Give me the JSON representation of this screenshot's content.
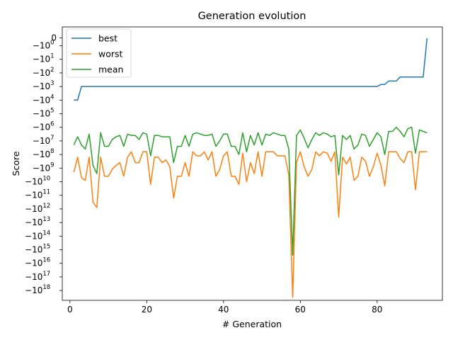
{
  "chart_data": {
    "type": "line",
    "title": "Generation evolution",
    "xlabel": "# Generation",
    "ylabel": "Score",
    "yscale": "symlog (negative, powers of ten)",
    "xlim": [
      -2,
      97
    ],
    "x_ticks": [
      "0",
      "20",
      "40",
      "60",
      "80"
    ],
    "y_ticks": [
      {
        "label": "0",
        "exp": null
      },
      {
        "label": "−10",
        "exp": "0"
      },
      {
        "label": "−10",
        "exp": "1"
      },
      {
        "label": "−10",
        "exp": "2"
      },
      {
        "label": "−10",
        "exp": "3"
      },
      {
        "label": "−10",
        "exp": "4"
      },
      {
        "label": "−10",
        "exp": "5"
      },
      {
        "label": "−10",
        "exp": "6"
      },
      {
        "label": "−10",
        "exp": "7"
      },
      {
        "label": "−10",
        "exp": "8"
      },
      {
        "label": "−10",
        "exp": "9"
      },
      {
        "label": "−10",
        "exp": "10"
      },
      {
        "label": "−10",
        "exp": "11"
      },
      {
        "label": "−10",
        "exp": "12"
      },
      {
        "label": "−10",
        "exp": "13"
      },
      {
        "label": "−10",
        "exp": "14"
      },
      {
        "label": "−10",
        "exp": "15"
      },
      {
        "label": "−10",
        "exp": "16"
      },
      {
        "label": "−10",
        "exp": "17"
      },
      {
        "label": "−10",
        "exp": "18"
      }
    ],
    "legend_position": "top-left",
    "series": [
      {
        "name": "best",
        "color": "#1f77b4",
        "x": [
          1,
          2,
          3,
          4,
          5,
          6,
          7,
          8,
          9,
          10,
          11,
          12,
          13,
          14,
          15,
          16,
          17,
          18,
          19,
          20,
          21,
          22,
          23,
          24,
          25,
          26,
          27,
          28,
          29,
          30,
          31,
          32,
          33,
          34,
          35,
          36,
          37,
          38,
          39,
          40,
          41,
          42,
          43,
          44,
          45,
          46,
          47,
          48,
          49,
          50,
          51,
          52,
          53,
          54,
          55,
          56,
          57,
          58,
          59,
          60,
          61,
          62,
          63,
          64,
          65,
          66,
          67,
          68,
          69,
          70,
          71,
          72,
          73,
          74,
          75,
          76,
          77,
          78,
          79,
          80,
          81,
          82,
          83,
          84,
          85,
          86,
          87,
          88,
          89,
          90,
          91,
          92,
          93
        ],
        "log_magnitude": [
          4,
          4,
          3,
          3,
          3,
          3,
          3,
          3,
          3,
          3,
          3,
          3,
          3,
          3,
          3,
          3,
          3,
          3,
          3,
          3,
          3,
          3,
          3,
          3,
          3,
          3,
          3,
          3,
          3,
          3,
          3,
          3,
          3,
          3,
          3,
          3,
          3,
          3,
          3,
          3,
          3,
          3,
          3,
          3,
          3,
          3,
          3,
          3,
          3,
          3,
          3,
          3,
          3,
          3,
          3,
          3,
          3,
          3,
          3,
          3,
          3,
          3,
          3,
          3,
          3,
          3,
          3,
          3,
          3,
          3,
          3,
          3,
          3,
          3,
          3,
          3,
          3,
          3,
          3,
          3,
          2.85,
          2.85,
          2.6,
          2.6,
          2.6,
          2.3,
          2.3,
          2.3,
          2.3,
          2.3,
          2.3,
          2.3,
          0
        ]
      },
      {
        "name": "worst",
        "color": "#ff7f0e",
        "x": [
          1,
          2,
          3,
          4,
          5,
          6,
          7,
          8,
          9,
          10,
          11,
          12,
          13,
          14,
          15,
          16,
          17,
          18,
          19,
          20,
          21,
          22,
          23,
          24,
          25,
          26,
          27,
          28,
          29,
          30,
          31,
          32,
          33,
          34,
          35,
          36,
          37,
          38,
          39,
          40,
          41,
          42,
          43,
          44,
          45,
          46,
          47,
          48,
          49,
          50,
          51,
          52,
          53,
          54,
          55,
          56,
          57,
          58,
          59,
          60,
          61,
          62,
          63,
          64,
          65,
          66,
          67,
          68,
          69,
          70,
          71,
          72,
          73,
          74,
          75,
          76,
          77,
          78,
          79,
          80,
          81,
          82,
          83,
          84,
          85,
          86,
          87,
          88,
          89,
          90,
          91,
          92,
          93
        ],
        "log_magnitude": [
          9.3,
          8.2,
          9.7,
          9.9,
          8.2,
          11.5,
          11.9,
          8.2,
          9.6,
          9.6,
          9.1,
          8.8,
          8.6,
          9.6,
          8.2,
          7.8,
          8.6,
          8.6,
          7.8,
          7.8,
          10.2,
          8.2,
          8.2,
          8.6,
          8.4,
          8.9,
          11.2,
          9.6,
          9.6,
          8.6,
          9.6,
          7.8,
          8.1,
          8.1,
          7.8,
          8.4,
          7.8,
          9.6,
          9.1,
          8.1,
          7.8,
          9.6,
          9.6,
          10.2,
          7.9,
          10.0,
          8.6,
          9.4,
          7.8,
          9.6,
          7.8,
          7.8,
          7.8,
          8.1,
          8.1,
          8.1,
          9.5,
          18.5,
          8.6,
          7.8,
          8.9,
          9.6,
          9.1,
          7.8,
          8.1,
          7.8,
          7.9,
          8.5,
          7.8,
          12.6,
          8.2,
          8.7,
          8.2,
          9.9,
          9.6,
          8.2,
          8.5,
          9.6,
          8.9,
          7.9,
          8.8,
          10.3,
          7.8,
          7.8,
          7.8,
          8.3,
          8.6,
          7.8,
          7.8,
          10.6,
          7.8,
          7.8,
          7.8
        ]
      },
      {
        "name": "mean",
        "color": "#2ca02c",
        "x": [
          1,
          2,
          3,
          4,
          5,
          6,
          7,
          8,
          9,
          10,
          11,
          12,
          13,
          14,
          15,
          16,
          17,
          18,
          19,
          20,
          21,
          22,
          23,
          24,
          25,
          26,
          27,
          28,
          29,
          30,
          31,
          32,
          33,
          34,
          35,
          36,
          37,
          38,
          39,
          40,
          41,
          42,
          43,
          44,
          45,
          46,
          47,
          48,
          49,
          50,
          51,
          52,
          53,
          54,
          55,
          56,
          57,
          58,
          59,
          60,
          61,
          62,
          63,
          64,
          65,
          66,
          67,
          68,
          69,
          70,
          71,
          72,
          73,
          74,
          75,
          76,
          77,
          78,
          79,
          80,
          81,
          82,
          83,
          84,
          85,
          86,
          87,
          88,
          89,
          90,
          91,
          92,
          93
        ],
        "log_magnitude": [
          7.3,
          6.7,
          7.3,
          7.6,
          6.5,
          8.8,
          9.4,
          6.4,
          7.4,
          7.4,
          6.9,
          6.7,
          6.6,
          7.4,
          6.5,
          6.6,
          6.6,
          6.9,
          6.4,
          6.5,
          8.1,
          6.6,
          6.6,
          6.7,
          6.7,
          6.7,
          8.6,
          7.4,
          7.4,
          6.6,
          7.4,
          6.5,
          6.4,
          6.5,
          6.6,
          6.6,
          6.5,
          7.4,
          7.0,
          6.5,
          6.5,
          7.4,
          7.4,
          8.0,
          6.4,
          7.8,
          6.6,
          7.3,
          6.4,
          7.3,
          6.5,
          6.6,
          6.4,
          6.5,
          6.6,
          6.6,
          7.6,
          15.4,
          6.6,
          6.2,
          6.8,
          7.5,
          6.9,
          6.4,
          6.6,
          6.4,
          6.5,
          6.7,
          6.6,
          9.5,
          6.6,
          6.9,
          6.6,
          7.6,
          7.3,
          6.5,
          6.6,
          7.4,
          6.9,
          6.4,
          6.7,
          8.0,
          6.3,
          6.3,
          6.0,
          6.3,
          6.7,
          6.1,
          6.0,
          7.9,
          6.2,
          6.3,
          6.4
        ]
      }
    ]
  }
}
